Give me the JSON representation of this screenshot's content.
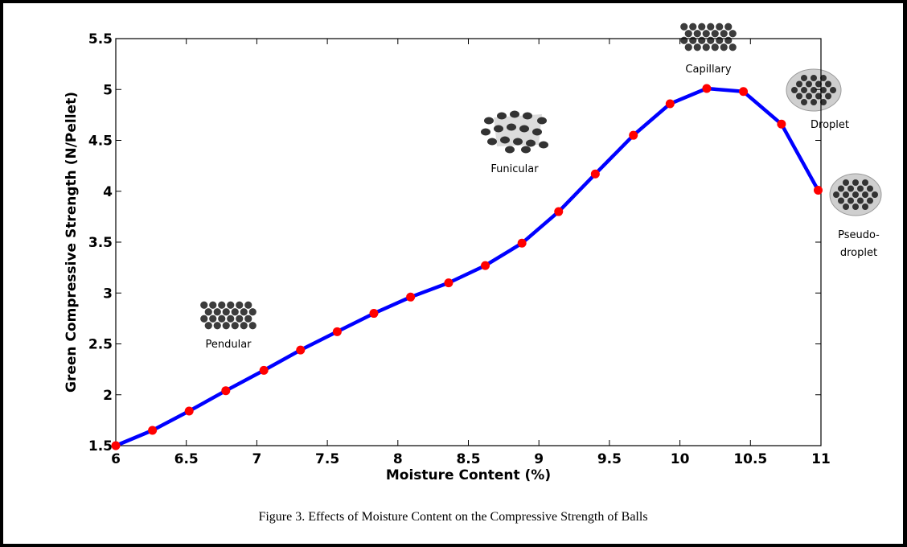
{
  "caption": "Figure 3. Effects of Moisture Content on the Compressive Strength of Balls",
  "chart_data": {
    "type": "line",
    "title": "",
    "xlabel": "Moisture Content (%)",
    "ylabel": "Green Compressive Strength (N/Pellet)",
    "xlim": [
      6,
      11
    ],
    "ylim": [
      1.5,
      5.5
    ],
    "x_ticks": [
      "6",
      "6.5",
      "7",
      "7.5",
      "8",
      "8.5",
      "9",
      "9.5",
      "10",
      "10.5",
      "11"
    ],
    "y_ticks": [
      "1.5",
      "2",
      "2.5",
      "3",
      "3.5",
      "4",
      "4.5",
      "5",
      "5.5"
    ],
    "grid": false,
    "line_color": "#0000ff",
    "marker_color": "#ff0000",
    "series": [
      {
        "x": [
          6.0,
          6.26,
          6.52,
          6.78,
          7.05,
          7.31,
          7.57,
          7.83,
          8.09,
          8.36,
          8.62,
          8.88,
          9.14,
          9.4,
          9.67,
          9.93,
          10.19,
          10.45,
          10.72,
          10.98
        ],
        "y": [
          1.5,
          1.65,
          1.84,
          2.04,
          2.24,
          2.44,
          2.62,
          2.8,
          2.96,
          3.1,
          3.27,
          3.49,
          3.8,
          4.17,
          4.55,
          4.86,
          5.01,
          4.98,
          4.66,
          4.01
        ]
      }
    ],
    "annotations": [
      {
        "text": [
          "Pendular"
        ],
        "icon": "particle-cluster-icon"
      },
      {
        "text": [
          "Funicular"
        ],
        "icon": "particle-network-icon"
      },
      {
        "text": [
          "Capillary"
        ],
        "icon": "particle-cluster-icon"
      },
      {
        "text": [
          "Droplet"
        ],
        "icon": "particle-droplet-icon"
      },
      {
        "text": [
          "Pseudo-",
          "droplet"
        ],
        "icon": "particle-droplet-icon"
      }
    ]
  }
}
